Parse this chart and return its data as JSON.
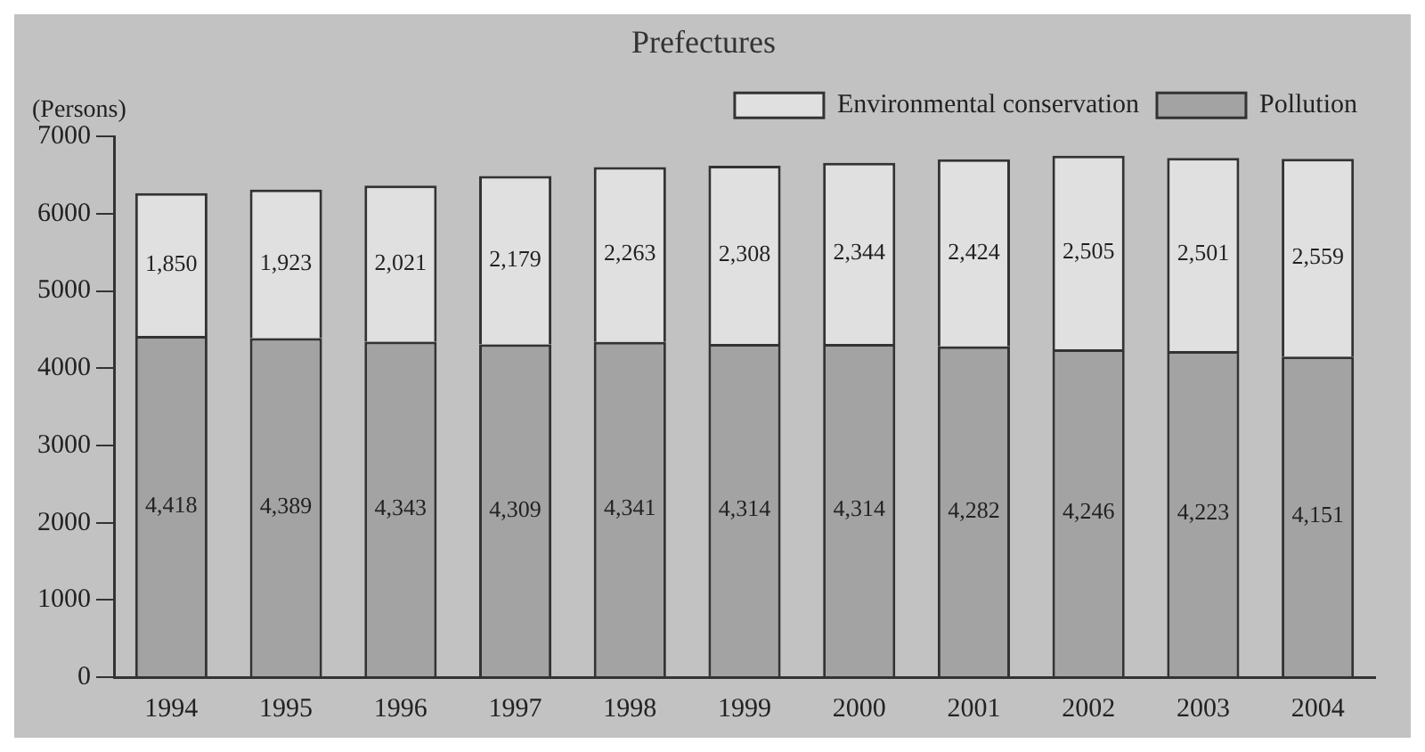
{
  "chart_data": {
    "type": "bar",
    "title": "Prefectures",
    "ylabel": "(Persons)",
    "stacked": true,
    "categories": [
      "1994",
      "1995",
      "1996",
      "1997",
      "1998",
      "1999",
      "2000",
      "2001",
      "2002",
      "2003",
      "2004"
    ],
    "series": [
      {
        "name": "Pollution",
        "color": "#a3a3a3",
        "values": [
          4418,
          4389,
          4343,
          4309,
          4341,
          4314,
          4314,
          4282,
          4246,
          4223,
          4151
        ],
        "value_labels": [
          "4,418",
          "4,389",
          "4,343",
          "4,309",
          "4,341",
          "4,314",
          "4,314",
          "4,282",
          "4,246",
          "4,223",
          "4,151"
        ]
      },
      {
        "name": "Environmental conservation",
        "color": "#e0e0e0",
        "values": [
          1850,
          1923,
          2021,
          2179,
          2263,
          2308,
          2344,
          2424,
          2505,
          2501,
          2559
        ],
        "value_labels": [
          "1,850",
          "1,923",
          "2,021",
          "2,179",
          "2,263",
          "2,308",
          "2,344",
          "2,424",
          "2,505",
          "2,501",
          "2,559"
        ]
      }
    ],
    "ylim": [
      0,
      7000
    ],
    "yticks": [
      0,
      1000,
      2000,
      3000,
      4000,
      5000,
      6000,
      7000
    ],
    "grid": false,
    "legend": "top right"
  }
}
